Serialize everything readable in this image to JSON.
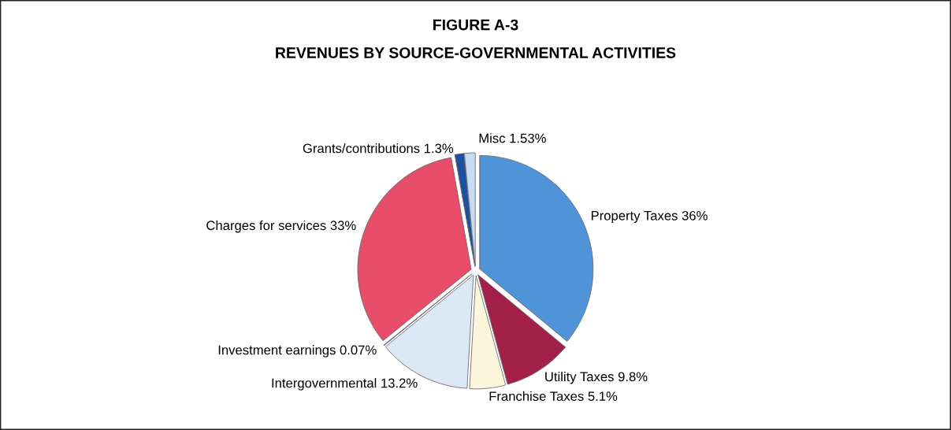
{
  "chart_data": {
    "type": "pie",
    "title": "FIGURE A-3",
    "subtitle": "REVENUES BY SOURCE-GOVERNMENTAL ACTIVITIES",
    "categories": [
      "Property Taxes 36%",
      "Utility Taxes 9.8%",
      "Franchise Taxes 5.1%",
      "Intergovernmental 13.2%",
      "Investment earnings 0.07%",
      "Charges for services 33%",
      "Grants/contributions 1.3%",
      "Misc 1.53%"
    ],
    "values": [
      36,
      9.8,
      5.1,
      13.2,
      0.07,
      33,
      1.3,
      1.53
    ],
    "colors": [
      "#4f93d8",
      "#a3204b",
      "#fbf6dc",
      "#dce8f6",
      "#231a33",
      "#e84e69",
      "#1f4f9f",
      "#c7dcf2"
    ]
  }
}
